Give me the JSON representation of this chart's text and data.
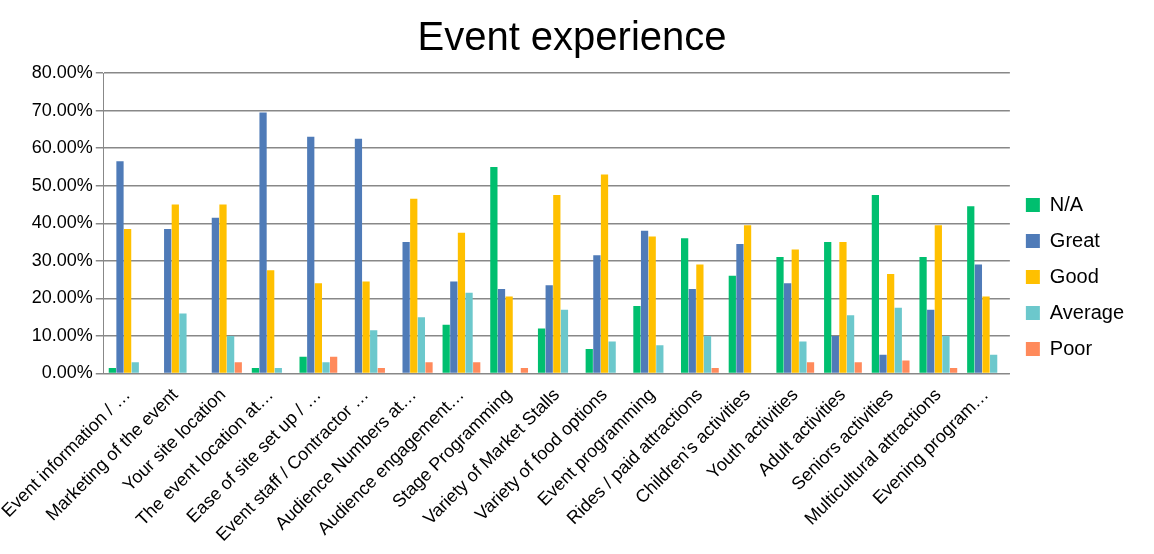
{
  "chart_data": {
    "type": "bar",
    "title": "Event experience",
    "categories": [
      "Event information / …",
      "Marketing of the event",
      "Your site location",
      "The event location at…",
      "Ease of site set up / …",
      "Event staff / Contractor …",
      "Audience Numbers at…",
      "Audience engagement…",
      "Stage Programming",
      "Variety of Market Stalls",
      "Variety of food options",
      "Event programming",
      "Rides / paid attractions",
      "Children’s activities",
      "Youth activities",
      "Adult activities",
      "Seniors activities",
      "Multicultural attractions",
      "Evening program…"
    ],
    "series": [
      {
        "name": "N/A",
        "color": "#00bf6f",
        "values": [
          1.5,
          0,
          0,
          1.5,
          4.5,
          0,
          0,
          13,
          55,
          12,
          6.5,
          18,
          36,
          26,
          31,
          35,
          47.5,
          31,
          44.5
        ]
      },
      {
        "name": "Great",
        "color": "#4f7bb8",
        "values": [
          56.5,
          38.5,
          41.5,
          69.5,
          63,
          62.5,
          35,
          24.5,
          22.5,
          23.5,
          31.5,
          38,
          22.5,
          34.5,
          24,
          10,
          5,
          17,
          29
        ]
      },
      {
        "name": "Good",
        "color": "#ffc000",
        "values": [
          38.5,
          45,
          45,
          27.5,
          24,
          24.5,
          46.5,
          37.5,
          20.5,
          47.5,
          53,
          36.5,
          29,
          39.5,
          33,
          35,
          26.5,
          39.5,
          20.5
        ]
      },
      {
        "name": "Average",
        "color": "#6cc8cc",
        "values": [
          3,
          16,
          10,
          1.5,
          3,
          11.5,
          15,
          21.5,
          0,
          17,
          8.5,
          7.5,
          10,
          0,
          8.5,
          15.5,
          17.5,
          10,
          5
        ]
      },
      {
        "name": "Poor",
        "color": "#ff8a5b",
        "values": [
          0,
          0,
          3,
          0,
          4.5,
          1.5,
          3,
          3,
          1.5,
          0,
          0,
          0,
          1.5,
          0,
          3,
          3,
          3.5,
          1.5,
          0
        ]
      }
    ],
    "ylim": [
      0,
      80
    ],
    "yticks": [
      {
        "value": 0,
        "label": "0.00%"
      },
      {
        "value": 10,
        "label": "10.00%"
      },
      {
        "value": 20,
        "label": "20.00%"
      },
      {
        "value": 30,
        "label": "30.00%"
      },
      {
        "value": 40,
        "label": "40.00%"
      },
      {
        "value": 50,
        "label": "50.00%"
      },
      {
        "value": 60,
        "label": "60.00%"
      },
      {
        "value": 70,
        "label": "70.00%"
      },
      {
        "value": 80,
        "label": "80.00%"
      }
    ],
    "grid": "y",
    "legend": "right"
  }
}
